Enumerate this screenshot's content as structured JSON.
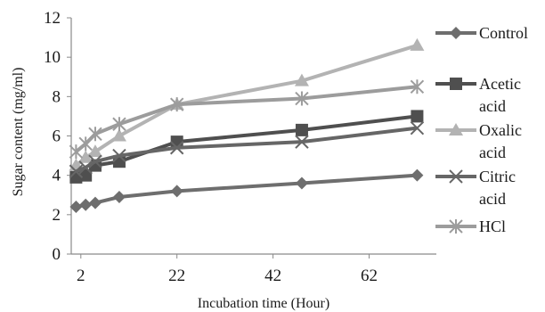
{
  "chart_data": {
    "type": "line",
    "title": "",
    "xlabel": "Incubation time  (Hour)",
    "ylabel": "Sugar content (mg/ml)",
    "xlim": [
      0,
      76
    ],
    "ylim": [
      0,
      12
    ],
    "xticks": [
      2,
      22,
      42,
      62
    ],
    "yticks": [
      0,
      2,
      4,
      6,
      8,
      10,
      12
    ],
    "grid": false,
    "legend_position": "right",
    "series": [
      {
        "name": "Control",
        "color": "#6e6e6e",
        "marker": "diamond",
        "x": [
          1,
          3,
          5,
          10,
          22,
          48,
          72
        ],
        "y": [
          2.4,
          2.5,
          2.6,
          2.9,
          3.2,
          3.6,
          4.0
        ]
      },
      {
        "name": "Acetic acid",
        "color": "#4f4f4f",
        "marker": "square",
        "x": [
          1,
          3,
          5,
          10,
          22,
          48,
          72
        ],
        "y": [
          3.9,
          4.0,
          4.5,
          4.7,
          5.7,
          6.3,
          7.0
        ]
      },
      {
        "name": "Oxalic acid",
        "color": "#b3b3b3",
        "marker": "triangle",
        "x": [
          1,
          3,
          5,
          10,
          22,
          48,
          72
        ],
        "y": [
          4.5,
          4.9,
          5.2,
          6.0,
          7.6,
          8.8,
          10.6
        ]
      },
      {
        "name": "Citric acid",
        "color": "#666666",
        "marker": "x",
        "x": [
          1,
          3,
          5,
          10,
          22,
          48,
          72
        ],
        "y": [
          4.2,
          4.4,
          4.7,
          5.0,
          5.4,
          5.7,
          6.4
        ]
      },
      {
        "name": "HCl",
        "color": "#9c9c9c",
        "marker": "asterisk",
        "x": [
          1,
          3,
          5,
          10,
          22,
          48,
          72
        ],
        "y": [
          5.2,
          5.6,
          6.1,
          6.6,
          7.6,
          7.9,
          8.5
        ]
      }
    ]
  },
  "legend": {
    "items": [
      {
        "lines": [
          "Control"
        ]
      },
      {
        "lines": [
          "Acetic",
          "acid"
        ]
      },
      {
        "lines": [
          "Oxalic",
          "acid"
        ]
      },
      {
        "lines": [
          "Citric",
          "acid"
        ]
      },
      {
        "lines": [
          "HCl"
        ]
      }
    ]
  }
}
